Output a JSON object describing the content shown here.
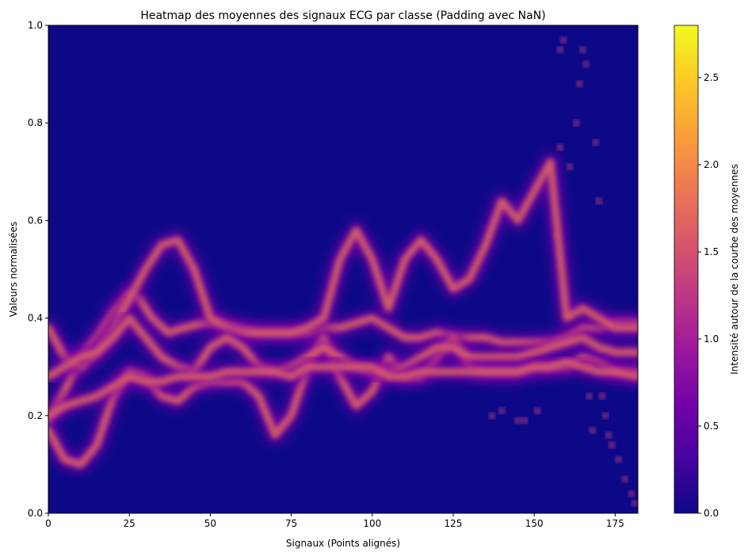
{
  "chart_data": {
    "type": "heatmap",
    "title": "Heatmap des moyennes des signaux ECG par classe (Padding avec NaN)",
    "xlabel": "Signaux (Points alignés)",
    "ylabel": "Valeurs normalisées",
    "xlim": [
      0,
      182
    ],
    "ylim": [
      0,
      1.0
    ],
    "x_ticks": [
      {
        "value": 0,
        "label": "0"
      },
      {
        "value": 25,
        "label": "25"
      },
      {
        "value": 50,
        "label": "50"
      },
      {
        "value": 75,
        "label": "75"
      },
      {
        "value": 100,
        "label": "100"
      },
      {
        "value": 125,
        "label": "125"
      },
      {
        "value": 150,
        "label": "150"
      },
      {
        "value": 175,
        "label": "175"
      }
    ],
    "y_ticks": [
      {
        "value": 0.0,
        "label": "0.0"
      },
      {
        "value": 0.2,
        "label": "0.2"
      },
      {
        "value": 0.4,
        "label": "0.4"
      },
      {
        "value": 0.6,
        "label": "0.6"
      },
      {
        "value": 0.8,
        "label": "0.8"
      },
      {
        "value": 1.0,
        "label": "1.0"
      }
    ],
    "colormap": "plasma",
    "colorbar": {
      "label": "Intensité autour de la courbe des moyennes",
      "range": [
        0,
        2.8
      ],
      "ticks": [
        {
          "value": 0.0,
          "label": "0.0"
        },
        {
          "value": 0.5,
          "label": "0.5"
        },
        {
          "value": 1.0,
          "label": "1.0"
        },
        {
          "value": 1.5,
          "label": "1.5"
        },
        {
          "value": 2.0,
          "label": "2.0"
        },
        {
          "value": 2.5,
          "label": "2.5"
        }
      ]
    },
    "series": [
      {
        "x": [
          0,
          5,
          10,
          15,
          20,
          25,
          28,
          32,
          37,
          42,
          48,
          53,
          58,
          65,
          70,
          75,
          80,
          85,
          90,
          95,
          100,
          105,
          110,
          115,
          120,
          125,
          130,
          135,
          140,
          145,
          150,
          155,
          160,
          165,
          170,
          175,
          182
        ],
        "y": [
          0.19,
          0.25,
          0.32,
          0.36,
          0.41,
          0.45,
          0.44,
          0.4,
          0.37,
          0.38,
          0.39,
          0.39,
          0.38,
          0.37,
          0.37,
          0.37,
          0.37,
          0.38,
          0.38,
          0.39,
          0.4,
          0.38,
          0.36,
          0.36,
          0.37,
          0.36,
          0.36,
          0.36,
          0.35,
          0.35,
          0.35,
          0.35,
          0.36,
          0.38,
          0.38,
          0.39,
          0.39
        ]
      },
      {
        "x": [
          0,
          5,
          10,
          15,
          20,
          25,
          30,
          35,
          40,
          45,
          50,
          55,
          60,
          65,
          70,
          75,
          80,
          85,
          90,
          95,
          100,
          105,
          110,
          115,
          120,
          125,
          130,
          135,
          140,
          145,
          150,
          155,
          160,
          165,
          170,
          175,
          182
        ],
        "y": [
          0.38,
          0.32,
          0.3,
          0.33,
          0.38,
          0.44,
          0.5,
          0.55,
          0.56,
          0.5,
          0.4,
          0.38,
          0.37,
          0.37,
          0.37,
          0.37,
          0.38,
          0.4,
          0.52,
          0.58,
          0.52,
          0.42,
          0.52,
          0.56,
          0.52,
          0.46,
          0.48,
          0.55,
          0.64,
          0.6,
          0.66,
          0.72,
          0.4,
          0.42,
          0.4,
          0.38,
          0.38
        ]
      },
      {
        "x": [
          0,
          5,
          10,
          15,
          20,
          25,
          30,
          35,
          40,
          45,
          50,
          55,
          60,
          65,
          70,
          75,
          80,
          85,
          90,
          95,
          100,
          105,
          110,
          115,
          120,
          125,
          130,
          135,
          140,
          145,
          150,
          155,
          160,
          165,
          170,
          175,
          182
        ],
        "y": [
          0.17,
          0.11,
          0.1,
          0.14,
          0.24,
          0.29,
          0.28,
          0.24,
          0.23,
          0.26,
          0.27,
          0.27,
          0.27,
          0.24,
          0.16,
          0.2,
          0.3,
          0.36,
          0.28,
          0.22,
          0.25,
          0.32,
          0.28,
          0.28,
          0.32,
          0.36,
          0.3,
          0.29,
          0.29,
          0.29,
          0.3,
          0.3,
          0.3,
          0.32,
          0.31,
          0.29,
          0.29
        ]
      },
      {
        "x": [
          0,
          5,
          10,
          15,
          20,
          25,
          30,
          35,
          40,
          45,
          50,
          55,
          60,
          65,
          70,
          75,
          80,
          85,
          90,
          95,
          100,
          105,
          110,
          115,
          120,
          125,
          130,
          135,
          140,
          145,
          150,
          155,
          160,
          165,
          170,
          175,
          182
        ],
        "y": [
          0.28,
          0.3,
          0.32,
          0.33,
          0.36,
          0.4,
          0.36,
          0.32,
          0.3,
          0.29,
          0.34,
          0.36,
          0.34,
          0.3,
          0.29,
          0.3,
          0.32,
          0.34,
          0.32,
          0.3,
          0.29,
          0.29,
          0.3,
          0.32,
          0.34,
          0.34,
          0.32,
          0.32,
          0.32,
          0.32,
          0.33,
          0.34,
          0.35,
          0.36,
          0.34,
          0.33,
          0.33
        ]
      },
      {
        "x": [
          0,
          5,
          10,
          15,
          20,
          25,
          30,
          35,
          40,
          45,
          50,
          55,
          60,
          65,
          70,
          75,
          80,
          85,
          90,
          95,
          100,
          105,
          110,
          115,
          120,
          125,
          130,
          135,
          140,
          145,
          150,
          155,
          160,
          165,
          170,
          175,
          182
        ],
        "y": [
          0.2,
          0.22,
          0.23,
          0.24,
          0.26,
          0.28,
          0.27,
          0.27,
          0.28,
          0.28,
          0.28,
          0.29,
          0.29,
          0.29,
          0.29,
          0.28,
          0.3,
          0.3,
          0.3,
          0.3,
          0.3,
          0.28,
          0.28,
          0.29,
          0.29,
          0.29,
          0.29,
          0.29,
          0.29,
          0.29,
          0.3,
          0.3,
          0.31,
          0.3,
          0.29,
          0.29,
          0.28
        ]
      }
    ],
    "isolated_points": [
      {
        "x": 137,
        "y": 0.2
      },
      {
        "x": 140,
        "y": 0.21
      },
      {
        "x": 145,
        "y": 0.19
      },
      {
        "x": 147,
        "y": 0.19
      },
      {
        "x": 151,
        "y": 0.21
      },
      {
        "x": 157,
        "y": 0.57
      },
      {
        "x": 158,
        "y": 0.75
      },
      {
        "x": 158,
        "y": 0.95
      },
      {
        "x": 159,
        "y": 0.97
      },
      {
        "x": 161,
        "y": 0.71
      },
      {
        "x": 163,
        "y": 0.8
      },
      {
        "x": 164,
        "y": 0.88
      },
      {
        "x": 165,
        "y": 0.95
      },
      {
        "x": 166,
        "y": 0.92
      },
      {
        "x": 167,
        "y": 0.3
      },
      {
        "x": 167,
        "y": 0.24
      },
      {
        "x": 168,
        "y": 0.17
      },
      {
        "x": 169,
        "y": 0.76
      },
      {
        "x": 170,
        "y": 0.64
      },
      {
        "x": 171,
        "y": 0.24
      },
      {
        "x": 172,
        "y": 0.2
      },
      {
        "x": 173,
        "y": 0.16
      },
      {
        "x": 174,
        "y": 0.14
      },
      {
        "x": 176,
        "y": 0.11
      },
      {
        "x": 178,
        "y": 0.07
      },
      {
        "x": 180,
        "y": 0.04
      },
      {
        "x": 181,
        "y": 0.02
      }
    ]
  }
}
